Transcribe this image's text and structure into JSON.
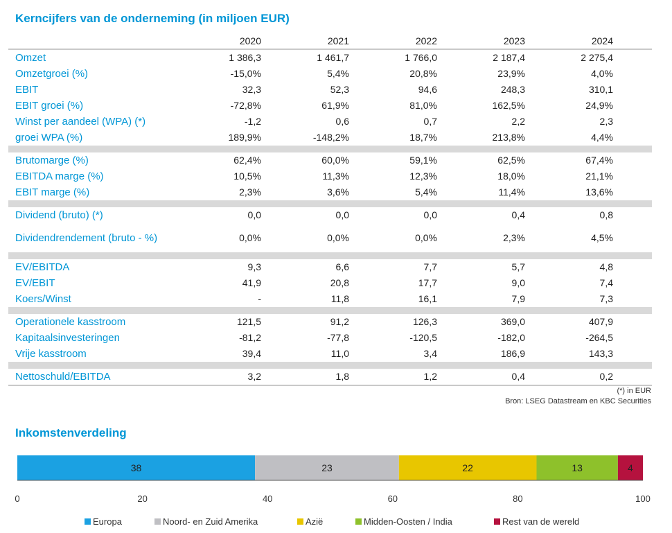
{
  "table": {
    "title": "Kerncijfers van de onderneming (in miljoen EUR)",
    "years": [
      "2020",
      "2021",
      "2022",
      "2023",
      "2024"
    ],
    "groups": [
      {
        "rows": [
          {
            "label": "Omzet",
            "values": [
              "1 386,3",
              "1 461,7",
              "1 766,0",
              "2 187,4",
              "2 275,4"
            ]
          },
          {
            "label": "Omzetgroei (%)",
            "values": [
              "-15,0%",
              "5,4%",
              "20,8%",
              "23,9%",
              "4,0%"
            ]
          },
          {
            "label": "EBIT",
            "values": [
              "32,3",
              "52,3",
              "94,6",
              "248,3",
              "310,1"
            ]
          },
          {
            "label": "EBIT groei (%)",
            "values": [
              "-72,8%",
              "61,9%",
              "81,0%",
              "162,5%",
              "24,9%"
            ]
          },
          {
            "label": "Winst per aandeel (WPA) (*)",
            "values": [
              "-1,2",
              "0,6",
              "0,7",
              "2,2",
              "2,3"
            ]
          },
          {
            "label": "groei WPA (%)",
            "values": [
              "189,9%",
              "-148,2%",
              "18,7%",
              "213,8%",
              "4,4%"
            ]
          }
        ]
      },
      {
        "rows": [
          {
            "label": "Brutomarge (%)",
            "values": [
              "62,4%",
              "60,0%",
              "59,1%",
              "62,5%",
              "67,4%"
            ]
          },
          {
            "label": "EBITDA marge (%)",
            "values": [
              "10,5%",
              "11,3%",
              "12,3%",
              "18,0%",
              "21,1%"
            ]
          },
          {
            "label": "EBIT marge (%)",
            "values": [
              "2,3%",
              "3,6%",
              "5,4%",
              "11,4%",
              "13,6%"
            ]
          }
        ]
      },
      {
        "rows": [
          {
            "label": "Dividend (bruto) (*)",
            "values": [
              "0,0",
              "0,0",
              "0,0",
              "0,4",
              "0,8"
            ]
          },
          {
            "label": "Dividendrendement (bruto - %)",
            "values": [
              "0,0%",
              "0,0%",
              "0,0%",
              "2,3%",
              "4,5%"
            ]
          }
        ]
      },
      {
        "rows": [
          {
            "label": "EV/EBITDA",
            "values": [
              "9,3",
              "6,6",
              "7,7",
              "5,7",
              "4,8"
            ]
          },
          {
            "label": "EV/EBIT",
            "values": [
              "41,9",
              "20,8",
              "17,7",
              "9,0",
              "7,4"
            ]
          },
          {
            "label": "Koers/Winst",
            "values": [
              "-",
              "11,8",
              "16,1",
              "7,9",
              "7,3"
            ]
          }
        ]
      },
      {
        "rows": [
          {
            "label": "Operationele kasstroom",
            "values": [
              "121,5",
              "91,2",
              "126,3",
              "369,0",
              "407,9"
            ]
          },
          {
            "label": "Kapitaalsinvesteringen",
            "values": [
              "-81,2",
              "-77,8",
              "-120,5",
              "-182,0",
              "-264,5"
            ]
          },
          {
            "label": "Vrije kasstroom",
            "values": [
              "39,4",
              "11,0",
              "3,4",
              "186,9",
              "143,3"
            ]
          }
        ]
      },
      {
        "rows": [
          {
            "label": "Nettoschuld/EBITDA",
            "values": [
              "3,2",
              "1,8",
              "1,2",
              "0,4",
              "0,2"
            ]
          }
        ]
      }
    ],
    "note": "(*) in EUR",
    "source": "Bron: LSEG Datastream en KBC Securities"
  },
  "chart_data": {
    "type": "bar",
    "stacked": true,
    "orientation": "horizontal",
    "title": "Inkomstenverdeling",
    "xlim": [
      0,
      100
    ],
    "xticks": [
      0,
      20,
      40,
      60,
      80,
      100
    ],
    "legend_position": "bottom",
    "series": [
      {
        "name": "Europa",
        "value": 38,
        "color": "#1ba1e2"
      },
      {
        "name": "Noord- en Zuid Amerika",
        "value": 23,
        "color": "#bfbfc3"
      },
      {
        "name": "Azië",
        "value": 22,
        "color": "#e8c600"
      },
      {
        "name": "Midden-Oosten / India",
        "value": 13,
        "color": "#8ec12b"
      },
      {
        "name": "Rest van de wereld",
        "value": 4,
        "color": "#b5123e"
      }
    ]
  }
}
